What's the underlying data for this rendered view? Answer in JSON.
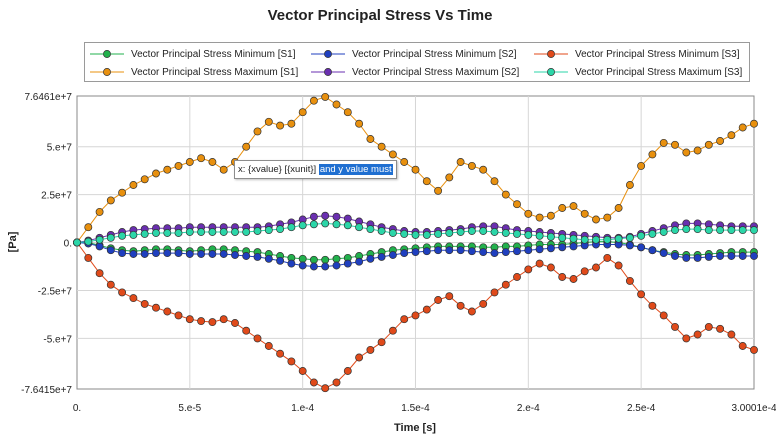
{
  "chart_data": {
    "type": "line",
    "title": "Vector Principal Stress Vs Time",
    "xlabel": "Time [s]",
    "ylabel": "[Pa]",
    "xlim": [
      0,
      0.00030001
    ],
    "ylim": [
      -76415000,
      76461000
    ],
    "x_ticks": [
      0,
      5e-05,
      0.0001,
      0.00015,
      0.0002,
      0.00025,
      0.00030001
    ],
    "x_tick_labels": [
      "0.",
      "5.e-5",
      "1.e-4",
      "1.5e-4",
      "2.e-4",
      "2.5e-4",
      "3.0001e-4"
    ],
    "y_ticks": [
      76461000,
      50000000,
      25000000,
      0,
      -25000000,
      -50000000,
      -76415000
    ],
    "y_tick_labels": [
      "7.6461e+7",
      "5.e+7",
      "2.5e+7",
      "0.",
      "-2.5e+7",
      "-5.e+7",
      "-7.6415e+7"
    ],
    "grid": true,
    "legend_position": "top",
    "x": [
      0,
      5e-06,
      1e-05,
      1.5e-05,
      2e-05,
      2.5e-05,
      3e-05,
      3.5e-05,
      4e-05,
      4.5e-05,
      5e-05,
      5.5e-05,
      6e-05,
      6.5e-05,
      7e-05,
      7.5e-05,
      8e-05,
      8.5e-05,
      9e-05,
      9.5e-05,
      0.0001,
      0.000105,
      0.00011,
      0.000115,
      0.00012,
      0.000125,
      0.00013,
      0.000135,
      0.00014,
      0.000145,
      0.00015,
      0.000155,
      0.00016,
      0.000165,
      0.00017,
      0.000175,
      0.00018,
      0.000185,
      0.00019,
      0.000195,
      0.0002,
      0.000205,
      0.00021,
      0.000215,
      0.00022,
      0.000225,
      0.00023,
      0.000235,
      0.00024,
      0.000245,
      0.00025,
      0.000255,
      0.00026,
      0.000265,
      0.00027,
      0.000275,
      0.00028,
      0.000285,
      0.00029,
      0.000295,
      0.0003
    ],
    "series": [
      {
        "name": "Vector Principal Stress Minimum [S1]",
        "color": "#22b14c",
        "values": [
          0,
          0,
          -1500000,
          -3000000,
          -4000000,
          -4500000,
          -4000000,
          -3500000,
          -3500000,
          -4000000,
          -4500000,
          -4000000,
          -3500000,
          -3500000,
          -4000000,
          -4500000,
          -5000000,
          -6000000,
          -7000000,
          -8000000,
          -8500000,
          -9000000,
          -9000000,
          -8500000,
          -8000000,
          -7000000,
          -6000000,
          -5000000,
          -4000000,
          -3500000,
          -3000000,
          -2500000,
          -2000000,
          -2000000,
          -2000000,
          -2000000,
          -2500000,
          -2500000,
          -2000000,
          -2000000,
          -1500000,
          -1000000,
          -1000000,
          -1000000,
          -500000,
          0,
          500000,
          500000,
          0,
          -1000000,
          -2500000,
          -4000000,
          -5000000,
          -6000000,
          -6500000,
          -6500000,
          -6000000,
          -5500000,
          -5000000,
          -5000000,
          -5000000
        ]
      },
      {
        "name": "Vector Principal Stress Minimum [S2]",
        "color": "#1f3fbf",
        "values": [
          0,
          -500000,
          -2000000,
          -4000000,
          -5500000,
          -6000000,
          -6000000,
          -5500000,
          -5500000,
          -5500000,
          -6000000,
          -6000000,
          -6000000,
          -6000000,
          -6500000,
          -7000000,
          -7500000,
          -8500000,
          -9500000,
          -11000000,
          -12000000,
          -12500000,
          -12500000,
          -12000000,
          -11000000,
          -10000000,
          -8500000,
          -7500000,
          -6500000,
          -5500000,
          -5000000,
          -4500000,
          -4000000,
          -4000000,
          -4000000,
          -4500000,
          -5000000,
          -5500000,
          -5000000,
          -4500000,
          -4000000,
          -3500000,
          -3000000,
          -2500000,
          -2000000,
          -1500000,
          -1000000,
          -1000000,
          -1000000,
          -1500000,
          -2500000,
          -4000000,
          -5500000,
          -7000000,
          -8000000,
          -8000000,
          -7500000,
          -7000000,
          -7000000,
          -7000000,
          -7000000
        ]
      },
      {
        "name": "Vector Principal Stress Minimum [S3]",
        "color": "#e04a1a",
        "values": [
          0,
          -8000000,
          -16000000,
          -22000000,
          -26000000,
          -29000000,
          -32000000,
          -34000000,
          -36000000,
          -38000000,
          -40000000,
          -41000000,
          -41500000,
          -40000000,
          -42000000,
          -46000000,
          -50000000,
          -54000000,
          -58000000,
          -62000000,
          -67000000,
          -73000000,
          -76000000,
          -73000000,
          -67000000,
          -60000000,
          -56000000,
          -52000000,
          -46000000,
          -40000000,
          -38000000,
          -35000000,
          -30000000,
          -28000000,
          -33000000,
          -36000000,
          -32000000,
          -26000000,
          -22000000,
          -18000000,
          -14000000,
          -11000000,
          -13000000,
          -18000000,
          -19000000,
          -15000000,
          -13000000,
          -8000000,
          -12000000,
          -20000000,
          -27000000,
          -33000000,
          -38000000,
          -44000000,
          -50000000,
          -48000000,
          -44000000,
          -45000000,
          -48000000,
          -54000000,
          -56000000
        ]
      },
      {
        "name": "Vector Principal Stress Maximum [S1]",
        "color": "#e8900e",
        "values": [
          0,
          8000000,
          16000000,
          22000000,
          26000000,
          30000000,
          33000000,
          36000000,
          38000000,
          40000000,
          42000000,
          44000000,
          42000000,
          38000000,
          42000000,
          50000000,
          58000000,
          63000000,
          61000000,
          62000000,
          68000000,
          74000000,
          76000000,
          72000000,
          68000000,
          62000000,
          54000000,
          50000000,
          46000000,
          42000000,
          38000000,
          32000000,
          27000000,
          34000000,
          42000000,
          40000000,
          38000000,
          32000000,
          25000000,
          20000000,
          15000000,
          13000000,
          14000000,
          18000000,
          19000000,
          15000000,
          12000000,
          13000000,
          18000000,
          30000000,
          40000000,
          46000000,
          52000000,
          51000000,
          47000000,
          48000000,
          51000000,
          53000000,
          56000000,
          60000000,
          62000000
        ]
      },
      {
        "name": "Vector Principal Stress Maximum [S2]",
        "color": "#6a2fb0",
        "values": [
          0,
          1000000,
          2500000,
          4000000,
          5500000,
          6500000,
          7000000,
          7500000,
          7500000,
          7500000,
          8000000,
          8000000,
          8000000,
          8000000,
          8000000,
          8000000,
          8000000,
          8500000,
          9500000,
          10500000,
          12000000,
          13500000,
          14000000,
          13500000,
          12500000,
          11000000,
          9500000,
          8000000,
          7000000,
          6000000,
          5500000,
          5500000,
          6000000,
          6500000,
          7000000,
          8000000,
          8500000,
          8500000,
          7500000,
          6500000,
          6000000,
          5500000,
          5000000,
          4500000,
          4000000,
          3500000,
          3000000,
          2500000,
          2500000,
          3000000,
          4500000,
          6000000,
          7500000,
          9000000,
          10000000,
          10000000,
          9500000,
          9000000,
          8500000,
          8500000,
          8500000
        ]
      },
      {
        "name": "Vector Principal Stress Maximum [S3]",
        "color": "#2bd6a8",
        "values": [
          0,
          500000,
          1500000,
          2500000,
          3500000,
          4000000,
          4500000,
          5000000,
          5000000,
          5000000,
          5500000,
          5500000,
          5500000,
          5500000,
          5500000,
          5500000,
          6000000,
          6500000,
          7000000,
          8000000,
          9000000,
          9500000,
          10000000,
          9500000,
          9000000,
          8000000,
          7000000,
          6000000,
          5000000,
          4500000,
          4000000,
          4000000,
          4500000,
          5000000,
          5500000,
          6000000,
          6000000,
          5500000,
          5000000,
          4500000,
          4000000,
          3500000,
          3000000,
          2500000,
          2000000,
          1500000,
          1500000,
          1500000,
          2000000,
          2500000,
          3500000,
          4500000,
          5500000,
          6500000,
          7000000,
          7000000,
          6500000,
          6500000,
          6500000,
          6500000,
          6500000
        ]
      }
    ]
  },
  "tooltip": {
    "plain": "x: {xvalue} [{xunit}]",
    "selected": "and y value must"
  }
}
